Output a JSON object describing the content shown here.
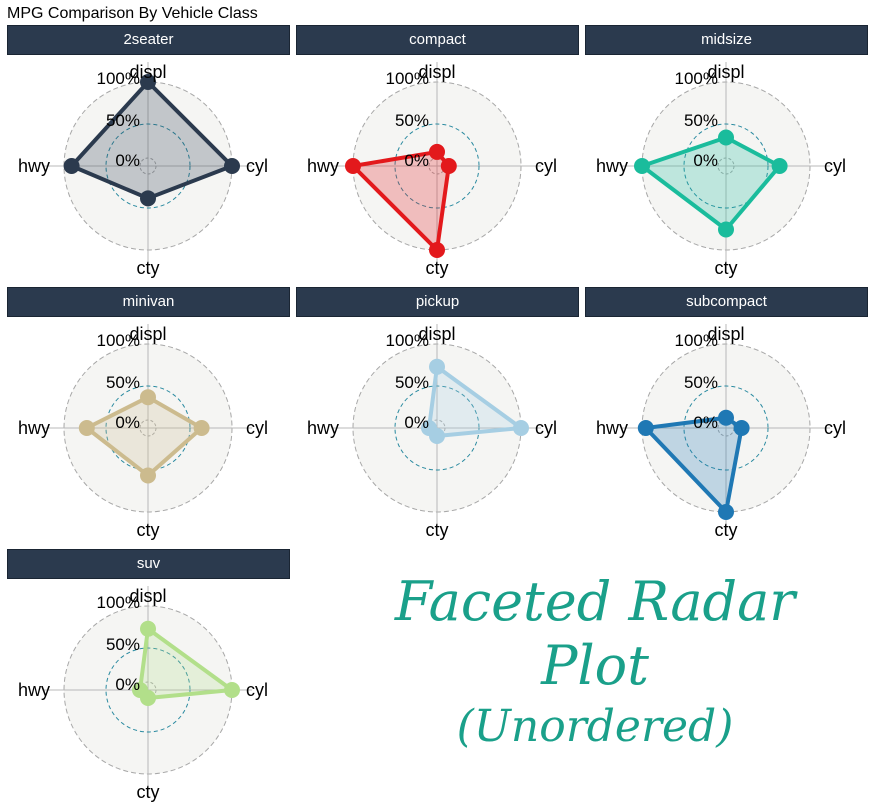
{
  "chart_data": {
    "type": "radar",
    "title": "MPG Comparison By Vehicle Class",
    "axes": [
      "displ",
      "cyl",
      "cty",
      "hwy"
    ],
    "grid_labels": [
      "0%",
      "50%",
      "100%"
    ],
    "rlim": [
      0,
      1
    ],
    "facets": [
      {
        "label": "2seater",
        "color": "#2b3a4e",
        "values": {
          "displ": 1.0,
          "cyl": 1.0,
          "cty": 0.32,
          "hwy": 0.9
        }
      },
      {
        "label": "compact",
        "color": "#e3191c",
        "values": {
          "displ": 0.08,
          "cyl": 0.05,
          "cty": 1.0,
          "hwy": 1.0
        }
      },
      {
        "label": "midsize",
        "color": "#1abc9c",
        "values": {
          "displ": 0.27,
          "cyl": 0.6,
          "cty": 0.73,
          "hwy": 1.0
        }
      },
      {
        "label": "minivan",
        "color": "#ccbb8e",
        "values": {
          "displ": 0.3,
          "cyl": 0.6,
          "cty": 0.52,
          "hwy": 0.7
        }
      },
      {
        "label": "pickup",
        "color": "#a6cee3",
        "values": {
          "displ": 0.7,
          "cyl": 1.0,
          "cty": 0.0,
          "hwy": 0.0
        }
      },
      {
        "label": "subcompact",
        "color": "#1f78b4",
        "values": {
          "displ": 0.03,
          "cyl": 0.1,
          "cty": 1.0,
          "hwy": 0.95
        }
      },
      {
        "label": "suv",
        "color": "#b2df8a",
        "values": {
          "displ": 0.7,
          "cyl": 1.0,
          "cty": 0.0,
          "hwy": 0.0
        }
      }
    ]
  },
  "caption": {
    "line1": "Faceted Radar",
    "line2": "Plot",
    "line3": "(Unordered)"
  }
}
